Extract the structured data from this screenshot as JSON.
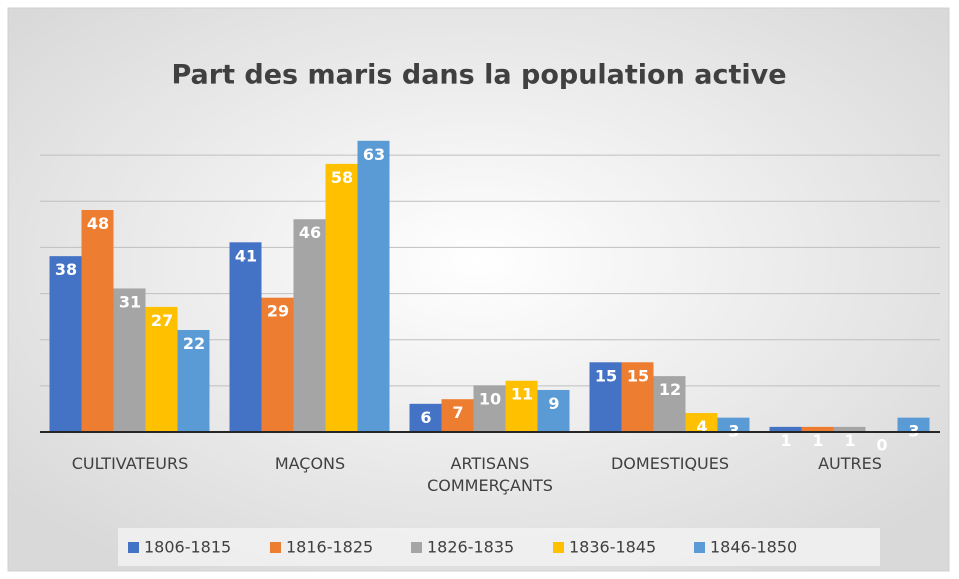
{
  "chart_data": {
    "type": "bar",
    "title": "Part des maris dans la population active",
    "categories": [
      "CULTIVATEURS",
      "MAÇONS",
      "ARTISANS COMMERÇANTS",
      "DOMESTIQUES",
      "AUTRES"
    ],
    "series": [
      {
        "name": "1806-1815",
        "color": "#4472c4",
        "values": [
          38,
          41,
          6,
          15,
          1
        ]
      },
      {
        "name": "1816-1825",
        "color": "#ed7d31",
        "values": [
          48,
          29,
          7,
          15,
          1
        ]
      },
      {
        "name": "1826-1835",
        "color": "#a5a5a5",
        "values": [
          31,
          46,
          10,
          12,
          1
        ]
      },
      {
        "name": "1836-1845",
        "color": "#ffc000",
        "values": [
          27,
          58,
          11,
          4,
          0
        ]
      },
      {
        "name": "1846-1850",
        "color": "#5b9bd5",
        "values": [
          22,
          63,
          9,
          3,
          3
        ]
      }
    ],
    "ylim": [
      0,
      70
    ],
    "yticks": [
      0,
      10,
      20,
      30,
      40,
      50,
      60
    ],
    "grid": true,
    "legend": "bottom"
  }
}
